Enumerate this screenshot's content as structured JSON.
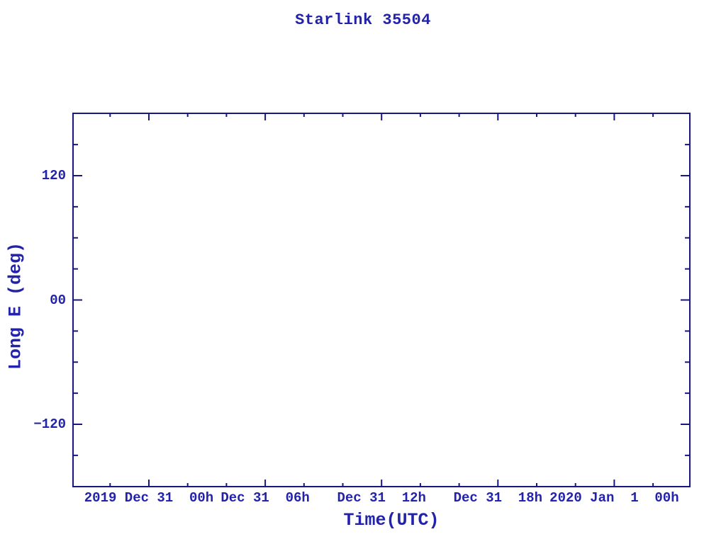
{
  "page": {
    "background": "#ffffff"
  },
  "colors": {
    "axis_line": "#17177f",
    "text": "#2222aa"
  },
  "title": "Starlink 35504",
  "chart_data": {
    "type": "line",
    "title": "Starlink 35504",
    "xlabel": "Time(UTC)",
    "ylabel": "Long E (deg)",
    "grid": false,
    "legend": "none",
    "plot_area_empty": true,
    "series": [],
    "x_axis": {
      "unit": "hours relative to 2019 Dec 31 00:00 UTC",
      "range_hours": [
        -3.9,
        27.9
      ],
      "major_tick_hours": [
        0,
        6,
        12,
        18,
        24
      ],
      "minor_tick_hours": [
        -2,
        2,
        4,
        8,
        10,
        14,
        16,
        20,
        22,
        26
      ],
      "tick_labels": [
        "2019 Dec 31  00h",
        "Dec 31  06h",
        "Dec 31  12h",
        "Dec 31  18h",
        "2020 Jan  1  00h"
      ]
    },
    "y_axis": {
      "range_deg": [
        -180,
        180
      ],
      "major_tick_values": [
        120,
        0,
        -120
      ],
      "major_tick_labels": [
        "120",
        "00",
        "−120"
      ],
      "minor_tick_values": [
        150,
        90,
        60,
        30,
        -30,
        -60,
        -90,
        -150
      ]
    }
  }
}
